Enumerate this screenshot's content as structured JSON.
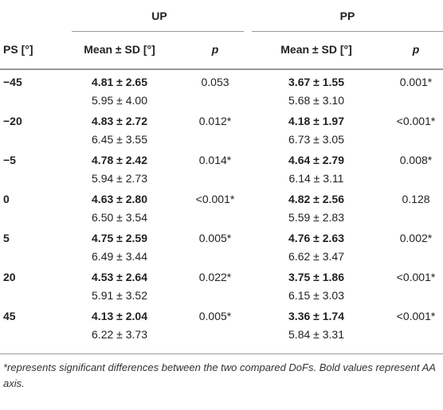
{
  "table": {
    "groups": [
      "UP",
      "PP"
    ],
    "columns": [
      "PS [°]",
      "Mean ± SD [°]",
      "p",
      "Mean ± SD [°]",
      "p"
    ],
    "rows": [
      {
        "ps": "−45",
        "up_bold": "4.81 ± 2.65",
        "up_plain": "5.95 ± 4.00",
        "up_p": "0.053",
        "pp_bold": "3.67 ± 1.55",
        "pp_plain": "5.68 ± 3.10",
        "pp_p": "0.001*"
      },
      {
        "ps": "−20",
        "up_bold": "4.83 ± 2.72",
        "up_plain": "6.45 ± 3.55",
        "up_p": "0.012*",
        "pp_bold": "4.18 ± 1.97",
        "pp_plain": "6.73 ± 3.05",
        "pp_p": "<0.001*"
      },
      {
        "ps": "−5",
        "up_bold": "4.78 ± 2.42",
        "up_plain": "5.94 ± 2.73",
        "up_p": "0.014*",
        "pp_bold": "4.64 ± 2.79",
        "pp_plain": "6.14 ± 3.11",
        "pp_p": "0.008*"
      },
      {
        "ps": "0",
        "up_bold": "4.63 ± 2.80",
        "up_plain": "6.50 ± 3.54",
        "up_p": "<0.001*",
        "pp_bold": "4.82 ± 2.56",
        "pp_plain": "5.59 ± 2.83",
        "pp_p": "0.128"
      },
      {
        "ps": "5",
        "up_bold": "4.75 ± 2.59",
        "up_plain": "6.49 ± 3.44",
        "up_p": "0.005*",
        "pp_bold": "4.76 ± 2.63",
        "pp_plain": "6.62 ± 3.47",
        "pp_p": "0.002*"
      },
      {
        "ps": "20",
        "up_bold": "4.53 ± 2.64",
        "up_plain": "5.91 ± 3.52",
        "up_p": "0.022*",
        "pp_bold": "3.75 ± 1.86",
        "pp_plain": "6.15 ± 3.03",
        "pp_p": "<0.001*"
      },
      {
        "ps": "45",
        "up_bold": "4.13 ± 2.04",
        "up_plain": "6.22 ± 3.73",
        "up_p": "0.005*",
        "pp_bold": "3.36 ± 1.74",
        "pp_plain": "5.84 ± 3.31",
        "pp_p": "<0.001*"
      }
    ]
  },
  "footnote": "*represents significant differences between the two compared DoFs. Bold values represent AA axis."
}
